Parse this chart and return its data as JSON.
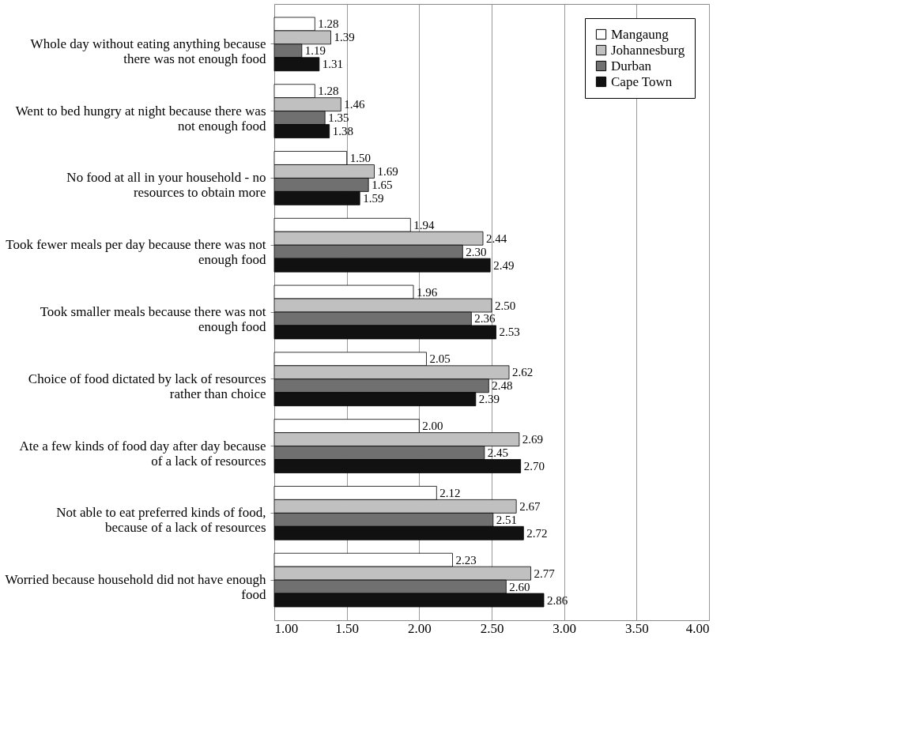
{
  "chart_data": {
    "type": "bar",
    "orientation": "horizontal",
    "categories": [
      "Whole day without eating anything because there was not enough food",
      "Went to bed hungry at night because there was not enough food",
      "No food at all in your household - no resources to obtain more",
      "Took fewer meals per day because there was not enough food",
      "Took smaller meals because there was not enough food",
      "Choice of food dictated by lack of resources rather than choice",
      "Ate a few kinds of food day after day because of a lack of resources",
      "Not able to eat preferred kinds of food, because of a lack of resources",
      "Worried because household did not have enough food"
    ],
    "series": [
      {
        "name": "Mangaung",
        "color": "#ffffff",
        "values": [
          1.28,
          1.28,
          1.5,
          1.94,
          1.96,
          2.05,
          2.0,
          2.12,
          2.23
        ],
        "value_labels": [
          "1.28",
          "1.28",
          "1.50",
          "1.94",
          "1.96",
          "2.05",
          "2.00",
          "2.12",
          "2.23"
        ]
      },
      {
        "name": "Johannesburg",
        "color": "#c0c0c0",
        "values": [
          1.39,
          1.46,
          1.69,
          2.44,
          2.5,
          2.62,
          2.69,
          2.67,
          2.77
        ],
        "value_labels": [
          "1.39",
          "1.46",
          "1.69",
          "2.44",
          "2.50",
          "2.62",
          "2.69",
          "2.67",
          "2.77"
        ]
      },
      {
        "name": "Durban",
        "color": "#707070",
        "values": [
          1.19,
          1.35,
          1.65,
          2.3,
          2.36,
          2.48,
          2.45,
          2.51,
          2.6
        ],
        "value_labels": [
          "1.19",
          "1.35",
          "1.65",
          "2.30",
          "2.36",
          "2.48",
          "2.45",
          "2.51",
          "2.60"
        ]
      },
      {
        "name": "Cape Town",
        "color": "#111111",
        "values": [
          1.31,
          1.38,
          1.59,
          2.49,
          2.53,
          2.39,
          2.7,
          2.72,
          2.86
        ],
        "value_labels": [
          "1.31",
          "1.38",
          "1.59",
          "2.49",
          "2.53",
          "2.39",
          "2.70",
          "2.72",
          "2.86"
        ]
      }
    ],
    "xlim": [
      1,
      4
    ],
    "xticks": [
      {
        "value": 1,
        "label": "1.00"
      },
      {
        "value": 1.5,
        "label": "1.50"
      },
      {
        "value": 2,
        "label": "2.00"
      },
      {
        "value": 2.5,
        "label": "2.50"
      },
      {
        "value": 3,
        "label": "3.00"
      },
      {
        "value": 3.5,
        "label": "3.50"
      },
      {
        "value": 4,
        "label": "4.00"
      }
    ],
    "grid": "x",
    "legend": "top right"
  }
}
